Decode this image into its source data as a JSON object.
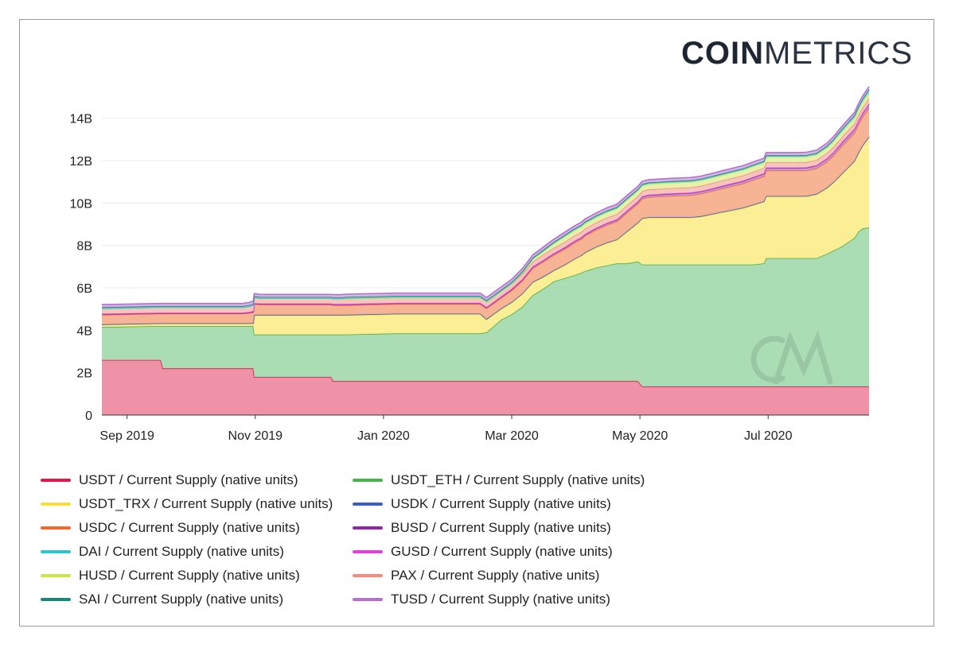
{
  "brand": {
    "logo_bold": "COIN",
    "logo_light": "METRICS"
  },
  "chart_data": {
    "type": "area",
    "stacked": true,
    "title": "",
    "xlabel": "",
    "ylabel": "",
    "ylim": [
      0,
      15000000000
    ],
    "y_ticks": [
      {
        "value": 0,
        "label": "0"
      },
      {
        "value": 2000000000,
        "label": "2B"
      },
      {
        "value": 4000000000,
        "label": "4B"
      },
      {
        "value": 6000000000,
        "label": "6B"
      },
      {
        "value": 8000000000,
        "label": "8B"
      },
      {
        "value": 10000000000,
        "label": "10B"
      },
      {
        "value": 12000000000,
        "label": "12B"
      },
      {
        "value": 14000000000,
        "label": "14B"
      }
    ],
    "x_range": [
      0,
      365
    ],
    "x_ticks": [
      {
        "day": 12,
        "label": "Sep 2019"
      },
      {
        "day": 73,
        "label": "Nov 2019"
      },
      {
        "day": 134,
        "label": "Jan 2020"
      },
      {
        "day": 195,
        "label": "Mar 2020"
      },
      {
        "day": 256,
        "label": "May 2020"
      },
      {
        "day": 317,
        "label": "Jul 2020"
      }
    ],
    "x_days": [
      0,
      28,
      29,
      55,
      67,
      70,
      72,
      72.5,
      75,
      109,
      110,
      112,
      114,
      116,
      140,
      165,
      180,
      183,
      190,
      195,
      200,
      205,
      210,
      215,
      220,
      225,
      228,
      230,
      232,
      235,
      240,
      245,
      250,
      255,
      257,
      260,
      265,
      270,
      275,
      280,
      285,
      290,
      295,
      300,
      305,
      310,
      315,
      316,
      320,
      325,
      330,
      335,
      340,
      345,
      348,
      350,
      352,
      355,
      358,
      360,
      362,
      365
    ],
    "series": [
      {
        "name": "USDT / Current Supply (native units)",
        "color": "#d81b4a",
        "fill": "#ee8ca3",
        "values": [
          2.6,
          2.6,
          2.2,
          2.2,
          2.2,
          2.2,
          2.2,
          1.8,
          1.8,
          1.8,
          1.6,
          1.6,
          1.6,
          1.6,
          1.6,
          1.6,
          1.6,
          1.6,
          1.6,
          1.6,
          1.6,
          1.6,
          1.6,
          1.6,
          1.6,
          1.6,
          1.6,
          1.6,
          1.6,
          1.6,
          1.6,
          1.6,
          1.6,
          1.6,
          1.35,
          1.35,
          1.35,
          1.35,
          1.35,
          1.35,
          1.35,
          1.35,
          1.35,
          1.35,
          1.35,
          1.35,
          1.35,
          1.35,
          1.35,
          1.35,
          1.35,
          1.35,
          1.35,
          1.35,
          1.35,
          1.35,
          1.35,
          1.35,
          1.35,
          1.35,
          1.35,
          1.35
        ]
      },
      {
        "name": "USDT_ETH / Current Supply (native units)",
        "color": "#4caf50",
        "fill": "#a7dbb0",
        "values": [
          1.55,
          1.6,
          2.0,
          2.0,
          2.0,
          2.0,
          2.0,
          2.0,
          2.0,
          2.0,
          2.2,
          2.2,
          2.2,
          2.2,
          2.25,
          2.25,
          2.25,
          2.3,
          2.9,
          3.15,
          3.5,
          4.05,
          4.35,
          4.7,
          4.85,
          5.0,
          5.1,
          5.2,
          5.25,
          5.35,
          5.45,
          5.55,
          5.55,
          5.65,
          5.75,
          5.75,
          5.75,
          5.75,
          5.75,
          5.75,
          5.75,
          5.75,
          5.75,
          5.75,
          5.75,
          5.75,
          5.8,
          6.05,
          6.05,
          6.05,
          6.05,
          6.05,
          6.05,
          6.25,
          6.4,
          6.5,
          6.6,
          6.8,
          7.0,
          7.3,
          7.45,
          7.5
        ]
      },
      {
        "name": "USDT_TRX / Current Supply (native units)",
        "color": "#f5df3a",
        "fill": "#fbed8f",
        "values": [
          0.1,
          0.1,
          0.1,
          0.1,
          0.1,
          0.1,
          0.1,
          0.9,
          0.9,
          0.9,
          0.9,
          0.9,
          0.9,
          0.9,
          0.9,
          0.9,
          0.9,
          0.6,
          0.5,
          0.55,
          0.6,
          0.6,
          0.55,
          0.5,
          0.6,
          0.75,
          0.8,
          0.85,
          0.9,
          0.95,
          1.05,
          1.1,
          1.5,
          1.8,
          2.15,
          2.2,
          2.2,
          2.2,
          2.2,
          2.2,
          2.25,
          2.35,
          2.45,
          2.55,
          2.65,
          2.8,
          2.9,
          2.9,
          2.9,
          2.9,
          2.9,
          2.9,
          3.0,
          3.1,
          3.2,
          3.3,
          3.4,
          3.5,
          3.6,
          3.7,
          3.9,
          4.25
        ]
      },
      {
        "name": "USDK / Current Supply (native units)",
        "color": "#3f5fbf",
        "fill": "#a9b7e6",
        "values": [
          0.03,
          0.03,
          0.03,
          0.03,
          0.03,
          0.03,
          0.03,
          0.03,
          0.03,
          0.03,
          0.03,
          0.03,
          0.03,
          0.03,
          0.03,
          0.03,
          0.03,
          0.03,
          0.03,
          0.03,
          0.03,
          0.03,
          0.03,
          0.03,
          0.03,
          0.03,
          0.03,
          0.03,
          0.03,
          0.03,
          0.03,
          0.03,
          0.03,
          0.03,
          0.03,
          0.03,
          0.03,
          0.03,
          0.03,
          0.03,
          0.03,
          0.03,
          0.03,
          0.03,
          0.03,
          0.03,
          0.03,
          0.03,
          0.03,
          0.03,
          0.03,
          0.03,
          0.03,
          0.03,
          0.03,
          0.03,
          0.03,
          0.03,
          0.03,
          0.03,
          0.03,
          0.03
        ]
      },
      {
        "name": "USDC / Current Supply (native units)",
        "color": "#ef6a2e",
        "fill": "#f5b08f",
        "values": [
          0.45,
          0.45,
          0.45,
          0.45,
          0.45,
          0.48,
          0.52,
          0.5,
          0.48,
          0.48,
          0.45,
          0.45,
          0.45,
          0.45,
          0.45,
          0.45,
          0.45,
          0.5,
          0.5,
          0.55,
          0.6,
          0.65,
          0.7,
          0.72,
          0.74,
          0.75,
          0.76,
          0.78,
          0.78,
          0.8,
          0.82,
          0.85,
          0.88,
          0.9,
          0.92,
          0.95,
          0.98,
          1.0,
          1.02,
          1.04,
          1.06,
          1.08,
          1.1,
          1.12,
          1.14,
          1.16,
          1.18,
          1.2,
          1.2,
          1.2,
          1.2,
          1.2,
          1.2,
          1.22,
          1.25,
          1.28,
          1.3,
          1.32,
          1.33,
          1.34,
          1.35,
          1.36
        ]
      },
      {
        "name": "BUSD / Current Supply (native units)",
        "color": "#8a2ca0",
        "fill": "#c596d0",
        "values": [
          0.03,
          0.03,
          0.03,
          0.03,
          0.03,
          0.03,
          0.03,
          0.03,
          0.03,
          0.03,
          0.04,
          0.04,
          0.04,
          0.04,
          0.04,
          0.04,
          0.04,
          0.04,
          0.04,
          0.05,
          0.05,
          0.05,
          0.06,
          0.06,
          0.06,
          0.07,
          0.07,
          0.07,
          0.07,
          0.07,
          0.08,
          0.08,
          0.08,
          0.08,
          0.09,
          0.09,
          0.09,
          0.1,
          0.1,
          0.1,
          0.1,
          0.1,
          0.11,
          0.11,
          0.11,
          0.12,
          0.12,
          0.12,
          0.12,
          0.12,
          0.12,
          0.13,
          0.13,
          0.14,
          0.14,
          0.15,
          0.15,
          0.16,
          0.16,
          0.17,
          0.17,
          0.18
        ]
      },
      {
        "name": "GUSD / Current Supply (native units)",
        "color": "#e33fe0",
        "fill": "#f2a5ef",
        "values": [
          0.02,
          0.02,
          0.02,
          0.02,
          0.02,
          0.02,
          0.02,
          0.02,
          0.02,
          0.02,
          0.02,
          0.02,
          0.02,
          0.02,
          0.02,
          0.02,
          0.02,
          0.02,
          0.02,
          0.02,
          0.02,
          0.02,
          0.02,
          0.02,
          0.02,
          0.02,
          0.02,
          0.02,
          0.02,
          0.02,
          0.02,
          0.02,
          0.02,
          0.02,
          0.02,
          0.02,
          0.02,
          0.02,
          0.02,
          0.02,
          0.02,
          0.02,
          0.02,
          0.02,
          0.02,
          0.02,
          0.02,
          0.02,
          0.02,
          0.02,
          0.02,
          0.02,
          0.02,
          0.02,
          0.02,
          0.02,
          0.02,
          0.02,
          0.02,
          0.02,
          0.02,
          0.02
        ]
      },
      {
        "name": "PAX / Current Supply (native units)",
        "color": "#f28d7e",
        "fill": "#f8c2b8",
        "values": [
          0.25,
          0.25,
          0.25,
          0.25,
          0.25,
          0.26,
          0.28,
          0.27,
          0.25,
          0.25,
          0.25,
          0.25,
          0.25,
          0.25,
          0.25,
          0.25,
          0.25,
          0.25,
          0.25,
          0.25,
          0.25,
          0.25,
          0.25,
          0.25,
          0.25,
          0.25,
          0.25,
          0.25,
          0.25,
          0.25,
          0.25,
          0.25,
          0.25,
          0.25,
          0.25,
          0.25,
          0.25,
          0.25,
          0.25,
          0.25,
          0.25,
          0.25,
          0.25,
          0.25,
          0.25,
          0.25,
          0.25,
          0.25,
          0.25,
          0.25,
          0.25,
          0.25,
          0.25,
          0.25,
          0.25,
          0.25,
          0.25,
          0.25,
          0.25,
          0.25,
          0.25,
          0.25
        ]
      },
      {
        "name": "HUSD / Current Supply (native units)",
        "color": "#cde34a",
        "fill": "#e7f0a8",
        "values": [
          0.0,
          0.0,
          0.0,
          0.0,
          0.0,
          0.0,
          0.0,
          0.0,
          0.0,
          0.0,
          0.0,
          0.0,
          0.0,
          0.0,
          0.0,
          0.0,
          0.0,
          0.0,
          0.0,
          0.0,
          0.05,
          0.1,
          0.15,
          0.2,
          0.25,
          0.25,
          0.25,
          0.25,
          0.25,
          0.25,
          0.25,
          0.25,
          0.25,
          0.25,
          0.25,
          0.25,
          0.25,
          0.25,
          0.25,
          0.25,
          0.25,
          0.25,
          0.25,
          0.25,
          0.25,
          0.25,
          0.25,
          0.25,
          0.25,
          0.25,
          0.25,
          0.25,
          0.25,
          0.25,
          0.25,
          0.25,
          0.25,
          0.25,
          0.25,
          0.25,
          0.25,
          0.25
        ]
      },
      {
        "name": "DAI / Current Supply (native units)",
        "color": "#2ec4cc",
        "fill": "#9fe2e6",
        "values": [
          0.0,
          0.0,
          0.0,
          0.0,
          0.0,
          0.0,
          0.0,
          0.0,
          0.0,
          0.0,
          0.0,
          0.0,
          0.0,
          0.03,
          0.03,
          0.03,
          0.03,
          0.03,
          0.03,
          0.03,
          0.04,
          0.04,
          0.05,
          0.05,
          0.05,
          0.05,
          0.05,
          0.05,
          0.05,
          0.05,
          0.05,
          0.05,
          0.05,
          0.05,
          0.05,
          0.05,
          0.05,
          0.05,
          0.05,
          0.05,
          0.05,
          0.05,
          0.05,
          0.05,
          0.05,
          0.05,
          0.05,
          0.05,
          0.05,
          0.05,
          0.05,
          0.05,
          0.05,
          0.06,
          0.07,
          0.08,
          0.09,
          0.1,
          0.11,
          0.12,
          0.13,
          0.14
        ]
      },
      {
        "name": "SAI / Current Supply (native units)",
        "color": "#158a7a",
        "fill": "#8cc8bf",
        "values": [
          0.06,
          0.06,
          0.06,
          0.06,
          0.06,
          0.06,
          0.06,
          0.06,
          0.06,
          0.06,
          0.06,
          0.06,
          0.06,
          0.05,
          0.05,
          0.05,
          0.05,
          0.04,
          0.04,
          0.04,
          0.03,
          0.03,
          0.03,
          0.03,
          0.03,
          0.03,
          0.03,
          0.03,
          0.03,
          0.03,
          0.03,
          0.03,
          0.03,
          0.03,
          0.03,
          0.03,
          0.03,
          0.03,
          0.03,
          0.03,
          0.03,
          0.03,
          0.03,
          0.03,
          0.03,
          0.03,
          0.03,
          0.03,
          0.03,
          0.03,
          0.03,
          0.03,
          0.03,
          0.03,
          0.03,
          0.03,
          0.03,
          0.03,
          0.03,
          0.03,
          0.03,
          0.03
        ]
      },
      {
        "name": "TUSD / Current Supply (native units)",
        "color": "#b56fd0",
        "fill": "#d8b1e6",
        "values": [
          0.12,
          0.12,
          0.12,
          0.12,
          0.12,
          0.13,
          0.13,
          0.12,
          0.12,
          0.12,
          0.13,
          0.13,
          0.13,
          0.13,
          0.13,
          0.13,
          0.13,
          0.13,
          0.13,
          0.13,
          0.13,
          0.13,
          0.13,
          0.13,
          0.13,
          0.13,
          0.13,
          0.13,
          0.13,
          0.13,
          0.13,
          0.13,
          0.13,
          0.13,
          0.13,
          0.13,
          0.13,
          0.13,
          0.13,
          0.13,
          0.13,
          0.13,
          0.13,
          0.13,
          0.13,
          0.13,
          0.13,
          0.13,
          0.13,
          0.13,
          0.13,
          0.13,
          0.13,
          0.13,
          0.13,
          0.13,
          0.13,
          0.13,
          0.13,
          0.13,
          0.13,
          0.13
        ]
      }
    ],
    "value_scale": 1000000000,
    "legend": {
      "placement": "bottom",
      "left_column": [
        "USDT / Current Supply (native units)",
        "USDT_TRX / Current Supply (native units)",
        "USDC / Current Supply (native units)",
        "DAI / Current Supply (native units)",
        "HUSD / Current Supply (native units)",
        "SAI / Current Supply (native units)"
      ],
      "right_column": [
        "USDT_ETH / Current Supply (native units)",
        "USDK / Current Supply (native units)",
        "BUSD / Current Supply (native units)",
        "GUSD / Current Supply (native units)",
        "PAX / Current Supply (native units)",
        "TUSD / Current Supply (native units)"
      ]
    }
  }
}
